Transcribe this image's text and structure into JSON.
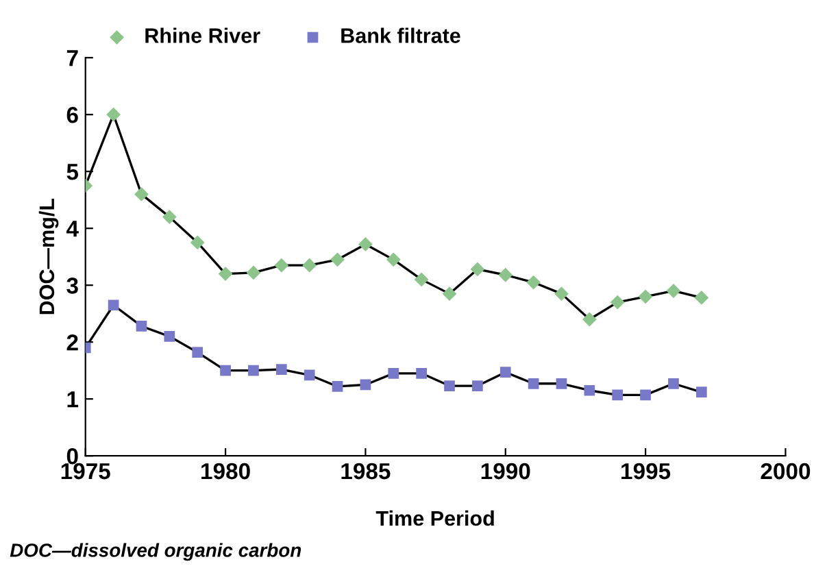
{
  "chart_data": {
    "type": "line",
    "xlabel": "Time Period",
    "ylabel": "DOC—mg/L",
    "x": [
      1975,
      1976,
      1977,
      1978,
      1979,
      1980,
      1981,
      1982,
      1983,
      1984,
      1985,
      1986,
      1987,
      1988,
      1989,
      1990,
      1991,
      1992,
      1993,
      1994,
      1995,
      1996,
      1997
    ],
    "series": [
      {
        "name": "Rhine River",
        "color": "#8cc48c",
        "marker": "diamond",
        "values": [
          4.75,
          6.0,
          4.6,
          4.2,
          3.75,
          3.2,
          3.22,
          3.35,
          3.35,
          3.45,
          3.72,
          3.45,
          3.1,
          2.85,
          3.28,
          3.18,
          3.05,
          2.85,
          2.4,
          2.7,
          2.8,
          2.9,
          2.78
        ]
      },
      {
        "name": "Bank filtrate",
        "color": "#7878c8",
        "marker": "square",
        "values": [
          1.9,
          2.65,
          2.28,
          2.1,
          1.82,
          1.5,
          1.5,
          1.52,
          1.42,
          1.22,
          1.25,
          1.45,
          1.45,
          1.23,
          1.23,
          1.47,
          1.27,
          1.27,
          1.15,
          1.07,
          1.07,
          1.27,
          1.12
        ]
      }
    ],
    "xlim": [
      1975,
      2000
    ],
    "xticks": [
      1975,
      1980,
      1985,
      1990,
      1995,
      2000
    ],
    "ylim": [
      0,
      7
    ],
    "yticks": [
      0,
      1,
      2,
      3,
      4,
      5,
      6,
      7
    ],
    "grid": false,
    "legend": "top",
    "line_style": "solid",
    "annotations": [
      "DOC—dissolved organic carbon"
    ]
  }
}
